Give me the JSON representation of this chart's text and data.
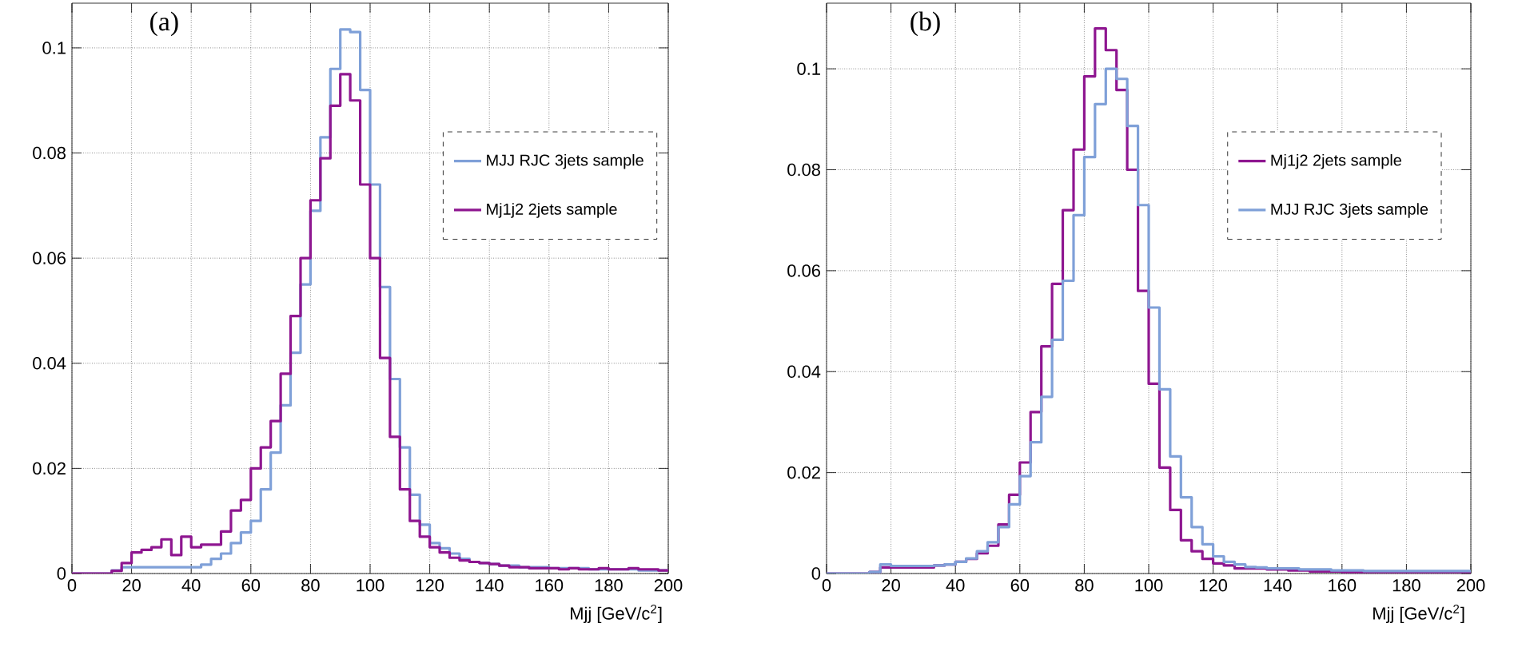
{
  "chart_data": [
    {
      "type": "histogram",
      "annotations": [
        "(a)"
      ],
      "xlabel": "Mjj [GeV/c$^{2}$]",
      "bins": [
        0,
        3.33,
        6.67,
        10,
        13.33,
        16.67,
        20,
        23.33,
        26.67,
        30,
        33.33,
        36.67,
        40,
        43.33,
        46.67,
        50,
        53.33,
        56.67,
        60,
        63.33,
        66.67,
        70,
        73.33,
        76.67,
        80,
        83.33,
        86.67,
        90,
        93.33,
        96.67,
        100,
        103.33,
        106.67,
        110,
        113.33,
        116.67,
        120,
        123.33,
        126.67,
        130,
        133.33,
        136.67,
        140,
        143.33,
        146.67,
        150,
        153.33,
        156.67,
        160,
        163.33,
        166.67,
        170,
        173.33,
        176.67,
        180,
        183.33,
        186.67,
        190,
        193.33,
        196.67,
        200
      ],
      "series": [
        {
          "name": "MJJ RJC 3jets sample",
          "color": "#7fa0d8",
          "values": [
            0,
            0,
            0,
            0,
            0.0006,
            0.0012,
            0.0012,
            0.0012,
            0.0012,
            0.0012,
            0.0012,
            0.0012,
            0.0012,
            0.0017,
            0.0028,
            0.0038,
            0.0058,
            0.0078,
            0.01,
            0.016,
            0.023,
            0.032,
            0.042,
            0.055,
            0.069,
            0.083,
            0.096,
            0.1035,
            0.103,
            0.092,
            0.074,
            0.0545,
            0.037,
            0.024,
            0.015,
            0.0093,
            0.0058,
            0.0048,
            0.0038,
            0.0028,
            0.0022,
            0.002,
            0.0018,
            0.0015,
            0.0015,
            0.0012,
            0.0012,
            0.0012,
            0.001,
            0.001,
            0.001,
            0.001,
            0.0008,
            0.0008,
            0.0008,
            0.0008,
            0.0008,
            0.0006,
            0.0006,
            0.0006
          ]
        },
        {
          "name": "Mj1j2 2jets sample",
          "color": "#8e1690",
          "values": [
            0,
            0,
            0,
            0,
            0.0005,
            0.002,
            0.004,
            0.0045,
            0.005,
            0.0065,
            0.0035,
            0.007,
            0.005,
            0.0055,
            0.0055,
            0.008,
            0.012,
            0.014,
            0.02,
            0.024,
            0.029,
            0.038,
            0.049,
            0.06,
            0.071,
            0.079,
            0.089,
            0.095,
            0.09,
            0.074,
            0.06,
            0.041,
            0.026,
            0.016,
            0.01,
            0.007,
            0.005,
            0.004,
            0.003,
            0.0025,
            0.0022,
            0.002,
            0.0018,
            0.0015,
            0.0012,
            0.0012,
            0.001,
            0.001,
            0.001,
            0.0008,
            0.001,
            0.0008,
            0.0008,
            0.001,
            0.0008,
            0.0008,
            0.001,
            0.0008,
            0.0008,
            0.0006
          ]
        }
      ],
      "xlim": [
        0,
        200
      ],
      "ylim": [
        0,
        0.1085
      ],
      "xticks": [
        0,
        20,
        40,
        60,
        80,
        100,
        120,
        140,
        160,
        180,
        200
      ],
      "yticks": [
        0,
        0.02,
        0.04,
        0.06,
        0.08,
        0.1
      ],
      "grid": true,
      "legend": "right"
    },
    {
      "type": "histogram",
      "annotations": [
        "(b)"
      ],
      "xlabel": "Mjj [GeV/c$^{2}$]",
      "bins": [
        0,
        3.33,
        6.67,
        10,
        13.33,
        16.67,
        20,
        23.33,
        26.67,
        30,
        33.33,
        36.67,
        40,
        43.33,
        46.67,
        50,
        53.33,
        56.67,
        60,
        63.33,
        66.67,
        70,
        73.33,
        76.67,
        80,
        83.33,
        86.67,
        90,
        93.33,
        96.67,
        100,
        103.33,
        106.67,
        110,
        113.33,
        116.67,
        120,
        123.33,
        126.67,
        130,
        133.33,
        136.67,
        140,
        143.33,
        146.67,
        150,
        153.33,
        156.67,
        160,
        163.33,
        166.67,
        170,
        173.33,
        176.67,
        180,
        183.33,
        186.67,
        190,
        193.33,
        196.67,
        200
      ],
      "series": [
        {
          "name": "Mj1j2 2jets sample",
          "color": "#8e1690",
          "values": [
            0,
            0,
            0,
            0,
            0.0003,
            0.0012,
            0.0012,
            0.0012,
            0.0012,
            0.0012,
            0.0016,
            0.0018,
            0.0023,
            0.0029,
            0.004,
            0.0055,
            0.0097,
            0.0156,
            0.022,
            0.032,
            0.045,
            0.0574,
            0.072,
            0.084,
            0.0985,
            0.108,
            0.1037,
            0.0958,
            0.08,
            0.056,
            0.0376,
            0.021,
            0.0126,
            0.0066,
            0.0044,
            0.0029,
            0.002,
            0.0016,
            0.001,
            0.001,
            0.001,
            0.0008,
            0.0008,
            0.0006,
            0.0006,
            0.0004,
            0.0004,
            0.0004,
            0.0003,
            0.0003,
            0.0003,
            0.0003,
            0.0003,
            0.0003,
            0.0003,
            0.0003,
            0.0003,
            0.0003,
            0.0003,
            0.0003
          ]
        },
        {
          "name": "MJJ RJC 3jets sample",
          "color": "#7fa0d8",
          "values": [
            0,
            0,
            0,
            0,
            0.0003,
            0.0018,
            0.0015,
            0.0015,
            0.0015,
            0.0015,
            0.0016,
            0.0018,
            0.0023,
            0.003,
            0.0044,
            0.0062,
            0.0092,
            0.0137,
            0.0193,
            0.026,
            0.035,
            0.0463,
            0.058,
            0.071,
            0.0825,
            0.093,
            0.1,
            0.098,
            0.0887,
            0.073,
            0.0527,
            0.0365,
            0.0232,
            0.0151,
            0.0092,
            0.0058,
            0.0034,
            0.0023,
            0.0018,
            0.0013,
            0.0012,
            0.001,
            0.001,
            0.001,
            0.0008,
            0.0008,
            0.0008,
            0.0006,
            0.0006,
            0.0006,
            0.0005,
            0.0005,
            0.0005,
            0.0005,
            0.0005,
            0.0005,
            0.0005,
            0.0005,
            0.0005,
            0.0005
          ]
        }
      ],
      "xlim": [
        0,
        200
      ],
      "ylim": [
        0,
        0.113
      ],
      "xticks": [
        0,
        20,
        40,
        60,
        80,
        100,
        120,
        140,
        160,
        180,
        200
      ],
      "yticks": [
        0,
        0.02,
        0.04,
        0.06,
        0.08,
        0.1
      ],
      "grid": true,
      "legend": "right"
    }
  ]
}
